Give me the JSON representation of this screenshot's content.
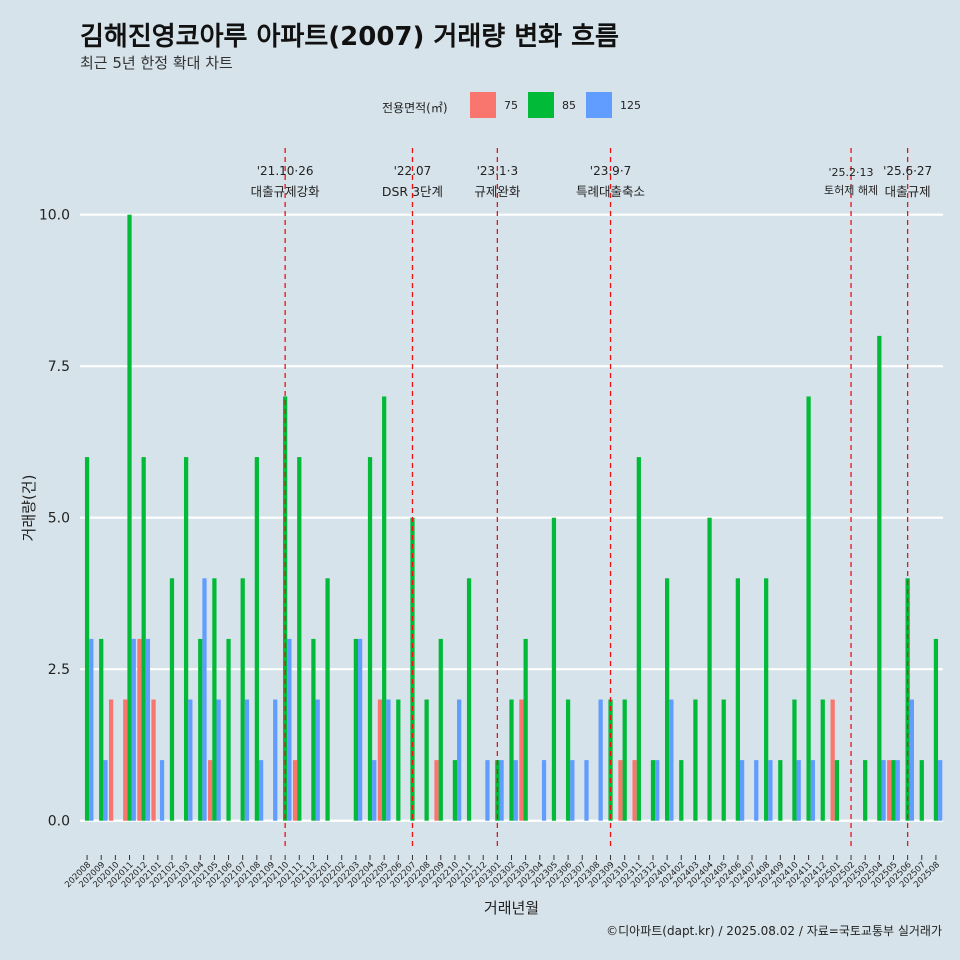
{
  "header": {
    "title": "김해진영코아루 아파트(2007) 거래량 변화 흐름",
    "subtitle": "최근 5년 한정 확대 차트"
  },
  "legend": {
    "title": "전용면적(㎡)",
    "items": [
      {
        "label": "75",
        "color": "#f8766d"
      },
      {
        "label": "85",
        "color": "#00ba38"
      },
      {
        "label": "125",
        "color": "#619cff"
      }
    ]
  },
  "caption": "©디아파트(dapt.kr) / 2025.08.02 / 자료=국토교통부 실거래가",
  "chart_data": {
    "type": "bar",
    "title": "김해진영코아루 아파트(2007) 거래량 변화 흐름",
    "xlabel": "거래년월",
    "ylabel": "거래량(건)",
    "ylim": [
      -0.45,
      11.1
    ],
    "yticks": [
      0.0,
      2.5,
      5.0,
      7.5,
      10.0
    ],
    "ytick_labels": [
      "0.0",
      "2.5",
      "5.0",
      "7.5",
      "10.0"
    ],
    "grid": true,
    "legend_position": "top",
    "categories": [
      "202008",
      "202009",
      "202010",
      "202011",
      "202012",
      "202101",
      "202102",
      "202103",
      "202104",
      "202105",
      "202106",
      "202107",
      "202108",
      "202109",
      "202110",
      "202111",
      "202112",
      "202201",
      "202202",
      "202203",
      "202204",
      "202205",
      "202206",
      "202207",
      "202208",
      "202209",
      "202210",
      "202211",
      "202212",
      "202301",
      "202302",
      "202303",
      "202304",
      "202305",
      "202306",
      "202307",
      "202308",
      "202309",
      "202310",
      "202311",
      "202312",
      "202401",
      "202402",
      "202403",
      "202404",
      "202405",
      "202406",
      "202407",
      "202408",
      "202409",
      "202410",
      "202411",
      "202412",
      "202501",
      "202502",
      "202503",
      "202504",
      "202505",
      "202506",
      "202507",
      "202508"
    ],
    "series": [
      {
        "name": "75",
        "color": "#f8766d",
        "values": [
          0,
          0,
          2,
          2,
          3,
          2,
          0,
          0,
          0,
          1,
          0,
          0,
          0,
          0,
          0,
          1,
          0,
          0,
          0,
          0,
          0,
          2,
          0,
          0,
          0,
          1,
          0,
          0,
          0,
          0,
          0,
          2,
          0,
          0,
          0,
          0,
          0,
          0,
          1,
          1,
          0,
          0,
          0,
          0,
          0,
          0,
          0,
          0,
          0,
          0,
          0,
          0,
          0,
          2,
          0,
          0,
          0,
          1,
          0,
          0,
          0
        ]
      },
      {
        "name": "85",
        "color": "#00ba38",
        "values": [
          6,
          3,
          0,
          10,
          6,
          0,
          4,
          6,
          3,
          4,
          3,
          4,
          6,
          0,
          7,
          6,
          3,
          4,
          0,
          3,
          6,
          7,
          2,
          5,
          2,
          3,
          1,
          4,
          0,
          1,
          2,
          3,
          0,
          5,
          2,
          0,
          0,
          2,
          2,
          6,
          1,
          4,
          1,
          2,
          5,
          2,
          4,
          0,
          4,
          1,
          2,
          7,
          2,
          1,
          0,
          1,
          8,
          1,
          4,
          1,
          3
        ]
      },
      {
        "name": "125",
        "color": "#619cff",
        "values": [
          3,
          1,
          0,
          3,
          3,
          1,
          0,
          2,
          4,
          2,
          0,
          2,
          1,
          2,
          3,
          0,
          2,
          0,
          0,
          3,
          1,
          2,
          0,
          0,
          0,
          0,
          2,
          0,
          1,
          1,
          1,
          0,
          1,
          0,
          1,
          1,
          2,
          0,
          0,
          0,
          1,
          2,
          0,
          0,
          0,
          0,
          1,
          1,
          1,
          0,
          1,
          1,
          0,
          0,
          0,
          0,
          1,
          1,
          2,
          0,
          1
        ]
      }
    ],
    "annotations": [
      {
        "date": "'21.10·26",
        "label": "대출규제강화",
        "x": "202110"
      },
      {
        "date": "'22.07",
        "label": "DSR 3단계",
        "x": "202207"
      },
      {
        "date": "'23.1·3",
        "label": "규제완화",
        "x": "202301"
      },
      {
        "date": "'23.9·7",
        "label": "특례대출축소",
        "x": "202309"
      },
      {
        "date": "'25.2·13",
        "label": "토허제 해제",
        "x": "202502"
      },
      {
        "date": "'25.6·27",
        "label": "대출규제",
        "x": "202506"
      }
    ]
  }
}
